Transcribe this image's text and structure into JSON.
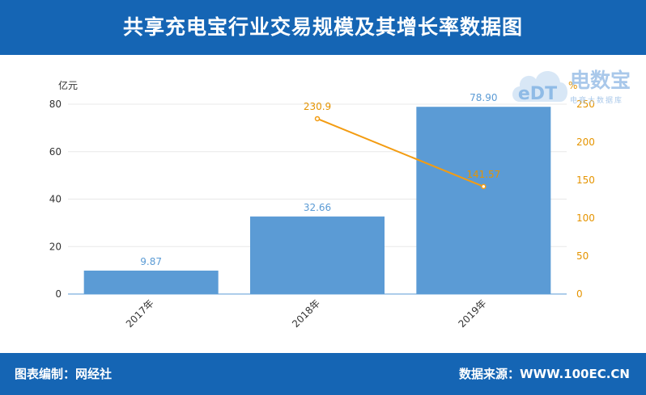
{
  "header": {
    "title": "共享充电宝行业交易规模及其增长率数据图"
  },
  "footer": {
    "compiler": "图表编制：网经社",
    "source": "数据来源：WWW.100EC.CN"
  },
  "watermark": {
    "logo_text": "eDT",
    "brand": "电数宝",
    "sub": "电商大数据库"
  },
  "colors": {
    "header_bg": "#1565b4",
    "bar": "#5b9bd5",
    "line": "#f39c12",
    "bar_label": "#5b9bd5"
  },
  "chart_data": {
    "type": "bar",
    "categories": [
      "2017年",
      "2018年",
      "2019年"
    ],
    "series": [
      {
        "values": [
          9.87,
          32.66,
          78.9
        ],
        "labels": [
          "9.87",
          "32.66",
          "78.90"
        ]
      },
      {
        "values": [
          null,
          230.9,
          141.57
        ],
        "labels": [
          "",
          "230.9",
          "141.57"
        ]
      }
    ],
    "y_left": {
      "unit": "亿元",
      "ylim": [
        0,
        80
      ],
      "ticks": [
        "0",
        "20",
        "40",
        "60",
        "80"
      ]
    },
    "y_right": {
      "unit": "%",
      "ylim": [
        0,
        250
      ],
      "ticks": [
        "0",
        "50",
        "100",
        "150",
        "200",
        "250"
      ]
    },
    "grid": true
  }
}
